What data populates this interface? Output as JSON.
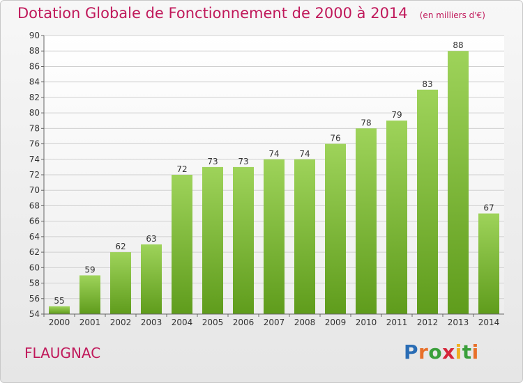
{
  "title": "Dotation Globale de Fonctionnement de 2000 à 2014",
  "unit": "(en milliers d'€)",
  "commune": "FLAUGNAC",
  "logo": {
    "p": "P",
    "r": "r",
    "o": "o",
    "x": "x",
    "i1": "i",
    "t": "t",
    "i2": "i"
  },
  "colors": {
    "title": "#c0185a",
    "bar_top": "#9ed35a",
    "bar_bottom": "#5f9c1c"
  },
  "chart_data": {
    "type": "bar",
    "categories": [
      "2000",
      "2001",
      "2002",
      "2003",
      "2004",
      "2005",
      "2006",
      "2007",
      "2008",
      "2009",
      "2010",
      "2011",
      "2012",
      "2013",
      "2014"
    ],
    "values": [
      55,
      59,
      62,
      63,
      72,
      73,
      73,
      74,
      74,
      76,
      78,
      79,
      83,
      88,
      67
    ],
    "ylim": [
      54,
      90
    ],
    "yticks": [
      54,
      56,
      58,
      60,
      62,
      64,
      66,
      68,
      70,
      72,
      74,
      76,
      78,
      80,
      82,
      84,
      86,
      88,
      90
    ],
    "grid": true,
    "data_labels": true
  }
}
